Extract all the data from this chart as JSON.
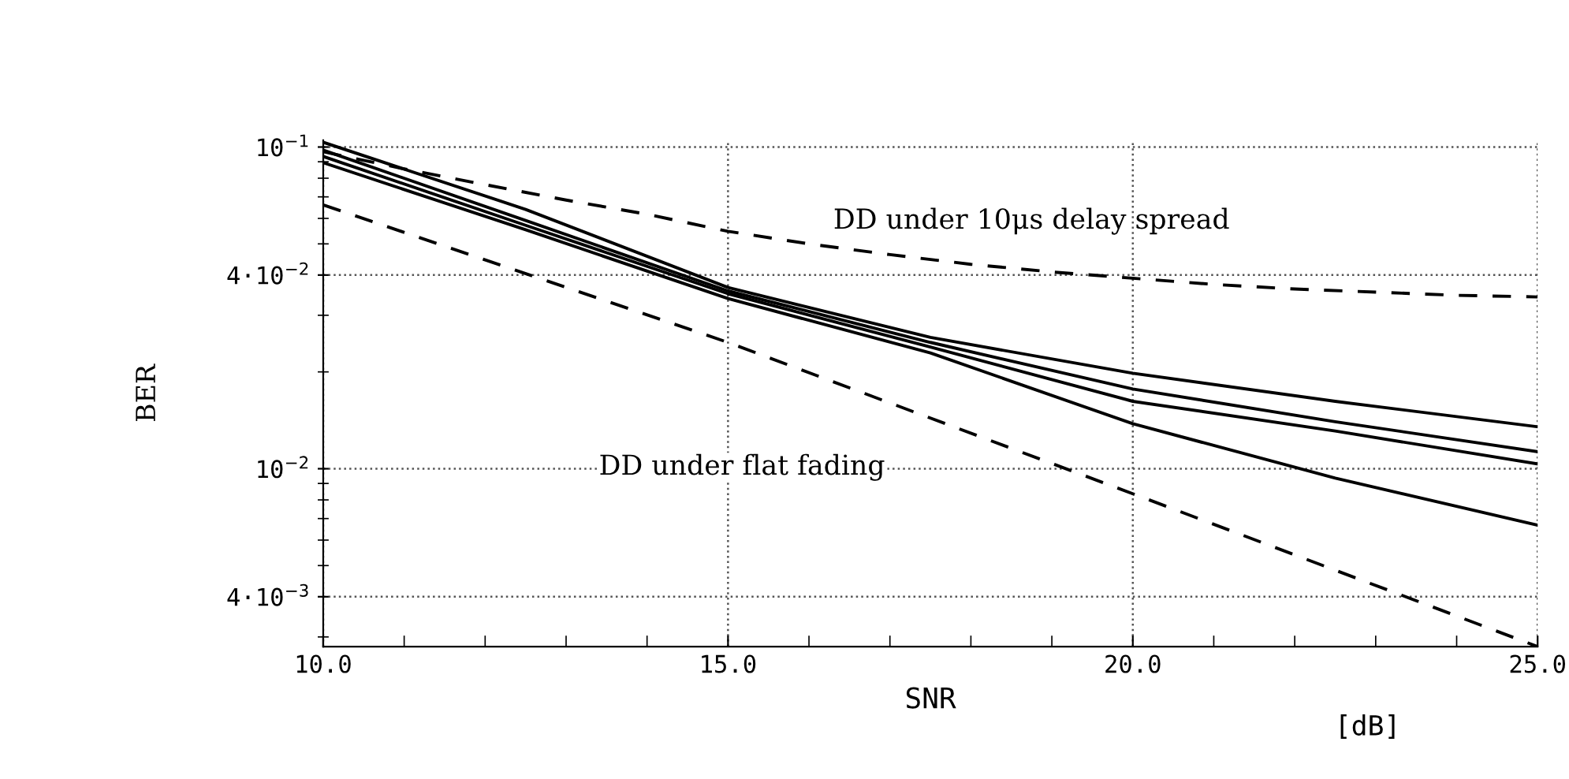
{
  "chart_data": {
    "type": "line",
    "xlabel": "SNR",
    "ylabel": "BER",
    "log": "y",
    "grid": true,
    "line_style": "solid",
    "marker": "none",
    "xlim": [
      10,
      25
    ],
    "ylim": [
      0.0028,
      0.105
    ],
    "xticks": [
      {
        "value": 10,
        "label": "10.0"
      },
      {
        "value": 15,
        "label": "15.0"
      },
      {
        "value": 20,
        "label": "20.0"
      },
      {
        "value": 25,
        "label": "25.0"
      }
    ],
    "yticks": [
      {
        "value": 0.004,
        "label": "4·10$^{−3}$"
      },
      {
        "value": 0.01,
        "label": "10$^{−2}$"
      },
      {
        "value": 0.04,
        "label": "4·10$^{−2}$"
      },
      {
        "value": 0.1,
        "label": "10$^{−1}$"
      }
    ],
    "annotations": [
      "DD under 10μs delay spread",
      "DD under flat fading",
      "[dB]"
    ],
    "series": [
      {
        "color": "#000000",
        "line_style": "dashed",
        "x": [
          10,
          11,
          12,
          13,
          14,
          15,
          16,
          17,
          18,
          19,
          20,
          21,
          22,
          23,
          24,
          25
        ],
        "values": [
          0.0967,
          0.0855,
          0.0764,
          0.0684,
          0.0618,
          0.0547,
          0.05,
          0.0463,
          0.0432,
          0.0409,
          0.0391,
          0.0374,
          0.0362,
          0.0354,
          0.0346,
          0.0342
        ]
      },
      {
        "color": "#000000",
        "line_style": "dashed",
        "x": [
          10,
          15,
          20,
          25
        ],
        "values": [
          0.0661,
          0.0247,
          0.00836,
          0.0028
        ]
      },
      {
        "color": "#000000",
        "x": [
          10,
          12.5,
          15,
          17.5,
          20,
          22.5,
          25
        ],
        "values": [
          0.1035,
          0.064,
          0.0366,
          0.0256,
          0.0198,
          0.0162,
          0.0135
        ]
      },
      {
        "color": "#000000",
        "x": [
          10,
          12.5,
          15,
          17.5,
          20,
          22.5,
          25
        ],
        "values": [
          0.0978,
          0.0591,
          0.0357,
          0.0247,
          0.0177,
          0.014,
          0.0113
        ]
      },
      {
        "color": "#000000",
        "x": [
          10,
          12.5,
          15,
          17.5,
          20,
          22.5,
          25
        ],
        "values": [
          0.0935,
          0.0571,
          0.035,
          0.0239,
          0.0162,
          0.0131,
          0.01035
        ]
      },
      {
        "color": "#000000",
        "x": [
          10,
          12.5,
          15,
          17.5,
          20,
          22.5,
          25
        ],
        "values": [
          0.0894,
          0.0553,
          0.0338,
          0.0229,
          0.0138,
          0.00935,
          0.00668
        ]
      }
    ]
  }
}
